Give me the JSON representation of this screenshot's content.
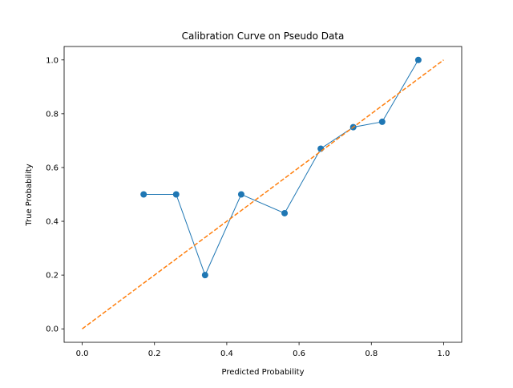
{
  "chart_data": {
    "type": "line",
    "title": "Calibration Curve on Pseudo Data",
    "xlabel": "Predicted Probability",
    "ylabel": "True Probability",
    "xlim": [
      -0.05,
      1.05
    ],
    "ylim": [
      -0.05,
      1.05
    ],
    "xticks": [
      "0.0",
      "0.2",
      "0.4",
      "0.6",
      "0.8",
      "1.0"
    ],
    "yticks": [
      "0.0",
      "0.2",
      "0.4",
      "0.6",
      "0.8",
      "1.0"
    ],
    "grid": false,
    "legend": "none",
    "series": [
      {
        "style": "solid line with circle markers",
        "color": "#1f77b4",
        "x": [
          0.17,
          0.26,
          0.34,
          0.44,
          0.56,
          0.66,
          0.75,
          0.83,
          0.93
        ],
        "y": [
          0.5,
          0.5,
          0.2,
          0.5,
          0.43,
          0.67,
          0.75,
          0.77,
          1.0
        ]
      },
      {
        "style": "dashed line",
        "color": "#ff7f0e",
        "x": [
          0.0,
          1.0
        ],
        "y": [
          0.0,
          1.0
        ]
      }
    ]
  }
}
